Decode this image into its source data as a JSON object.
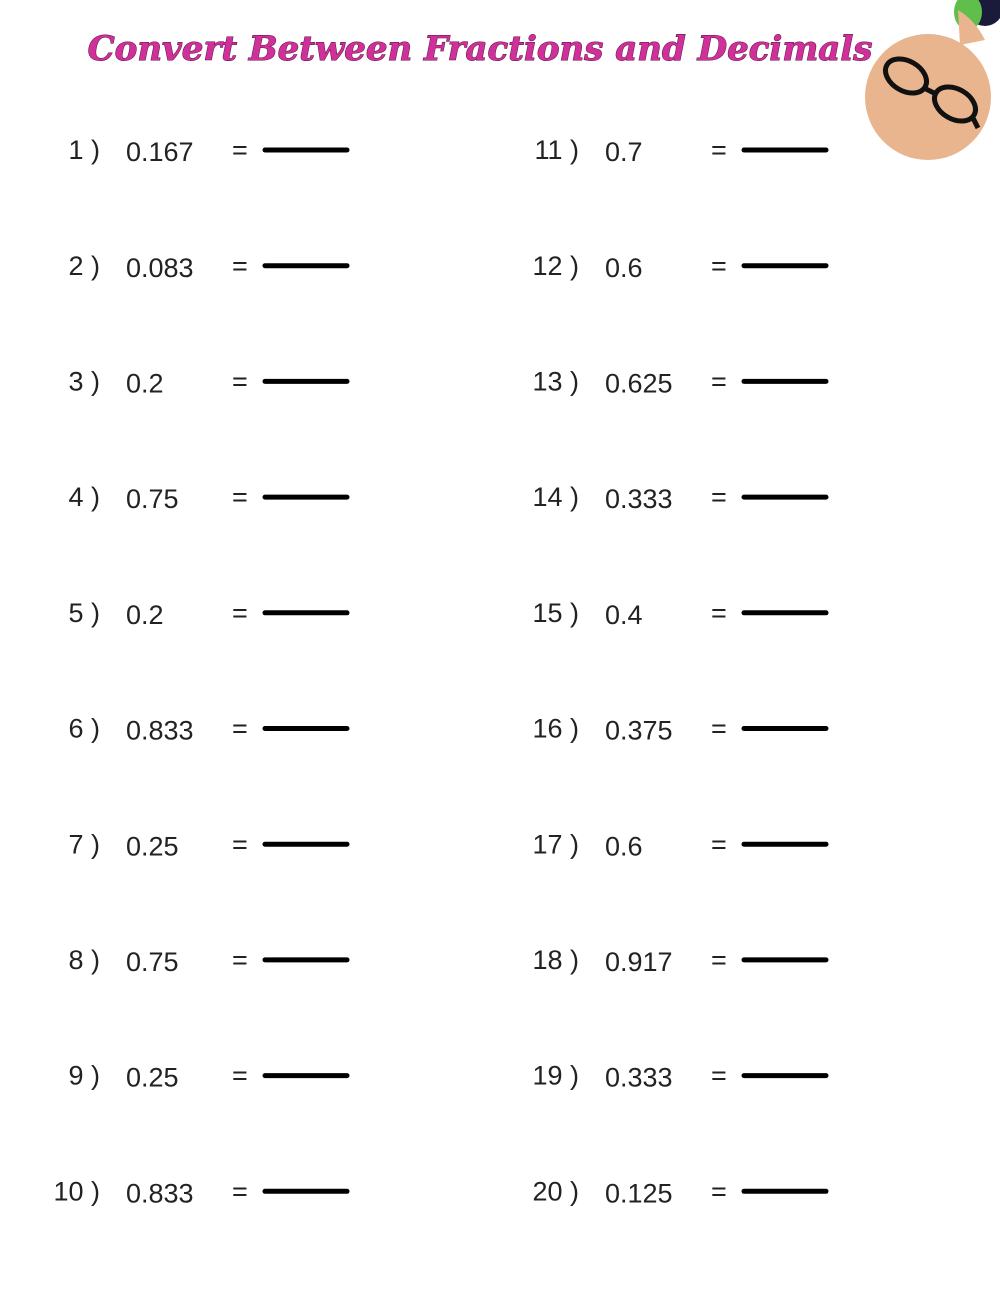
{
  "header": {
    "title": "Convert Between Fractions and Decimals"
  },
  "equals_sign": "=",
  "problems": [
    {
      "label": "1 )",
      "decimal": "0.167"
    },
    {
      "label": "2 )",
      "decimal": "0.083"
    },
    {
      "label": "3 )",
      "decimal": "0.2"
    },
    {
      "label": "4 )",
      "decimal": "0.75"
    },
    {
      "label": "5 )",
      "decimal": "0.2"
    },
    {
      "label": "6 )",
      "decimal": "0.833"
    },
    {
      "label": "7 )",
      "decimal": "0.25"
    },
    {
      "label": "8 )",
      "decimal": "0.75"
    },
    {
      "label": "9 )",
      "decimal": "0.25"
    },
    {
      "label": "10 )",
      "decimal": "0.833"
    },
    {
      "label": "11 )",
      "decimal": "0.7"
    },
    {
      "label": "12 )",
      "decimal": "0.6"
    },
    {
      "label": "13 )",
      "decimal": "0.625"
    },
    {
      "label": "14 )",
      "decimal": "0.333"
    },
    {
      "label": "15 )",
      "decimal": "0.4"
    },
    {
      "label": "16 )",
      "decimal": "0.375"
    },
    {
      "label": "17 )",
      "decimal": "0.6"
    },
    {
      "label": "18 )",
      "decimal": "0.917"
    },
    {
      "label": "19 )",
      "decimal": "0.333"
    },
    {
      "label": "20 )",
      "decimal": "0.125"
    }
  ]
}
